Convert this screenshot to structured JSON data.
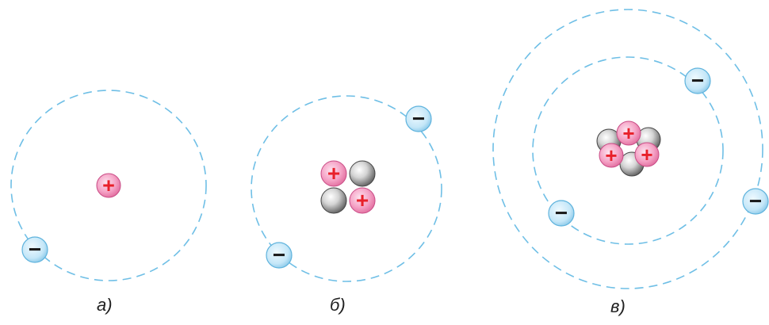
{
  "captions": {
    "a": "а)",
    "b": "б)",
    "c": "в)"
  },
  "symbols": {
    "proton": "+",
    "electron": "−"
  },
  "colors": {
    "orbit": "#6fbfe6",
    "proton_fill": "#f4a6c8",
    "proton_sign": "#e8202a",
    "neutron_fill": "#c8c8c8",
    "electron_fill": "#c9e9f9",
    "electron_sign": "#1a1a1a"
  },
  "atoms": [
    {
      "id": "a",
      "protons": 1,
      "neutrons": 0,
      "electrons": 1
    },
    {
      "id": "b",
      "protons": 2,
      "neutrons": 2,
      "electrons": 2
    },
    {
      "id": "c",
      "protons": 3,
      "neutrons": 4,
      "electrons": 3
    }
  ]
}
